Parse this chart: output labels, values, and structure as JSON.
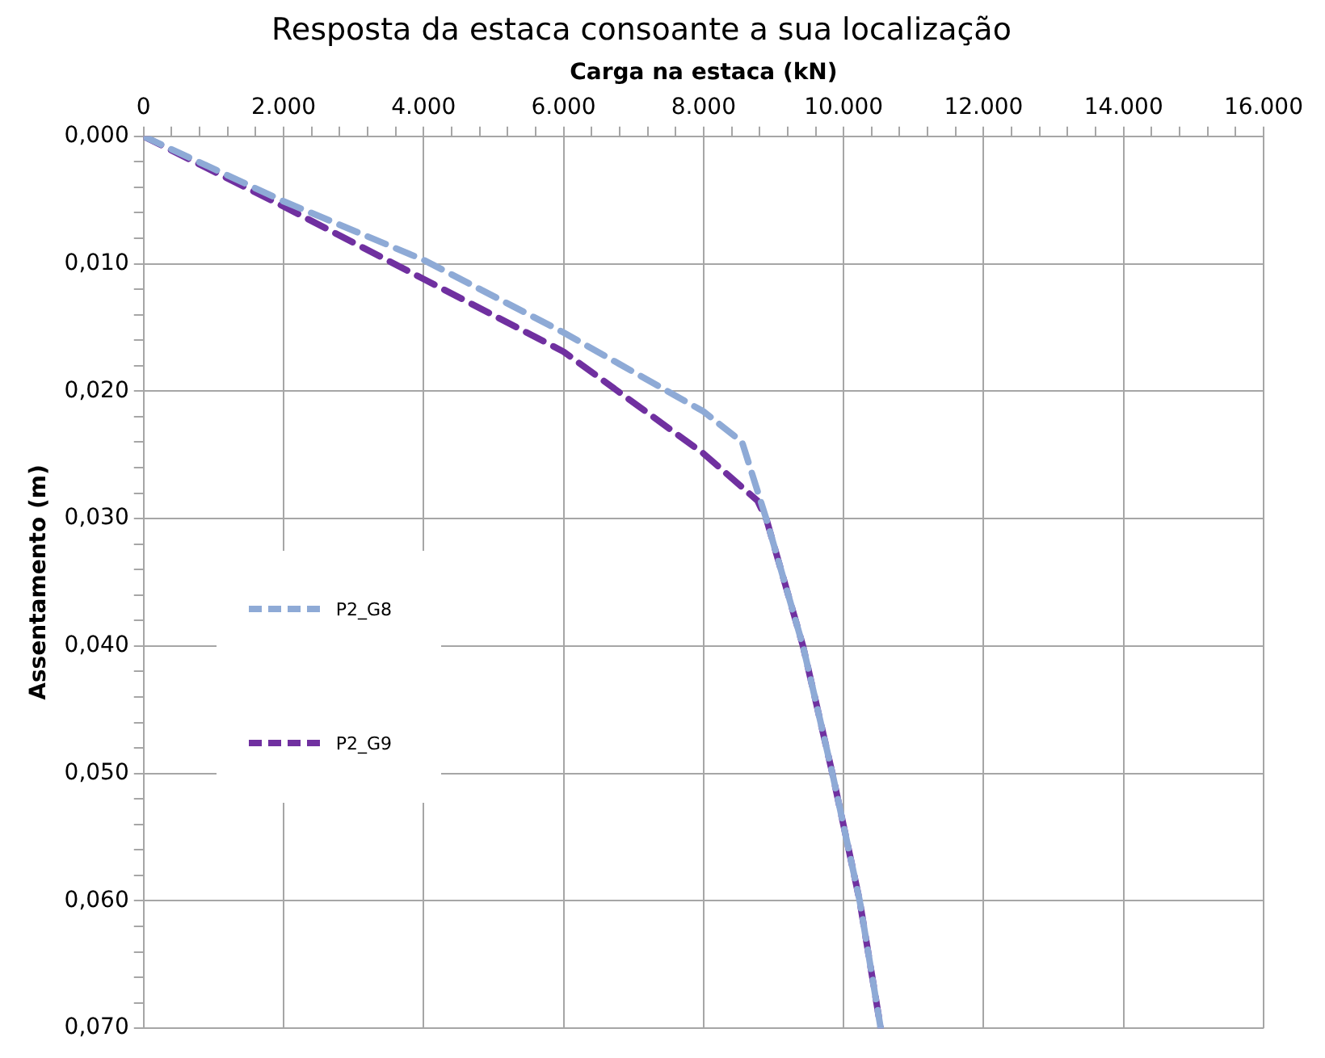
{
  "chart_data": {
    "type": "line",
    "title": "Resposta da estaca consoante a sua localização",
    "xlabel": "Carga na estaca (kN)",
    "ylabel": "Assentamento (m)",
    "series": [
      {
        "name": "P2_G8",
        "color": "#8eaad6",
        "x": [
          0,
          2000,
          4000,
          6000,
          8000,
          8550,
          8900,
          9420,
          9840,
          10230,
          10530
        ],
        "values": [
          0,
          0.0051,
          0.0097,
          0.0154,
          0.0216,
          0.024,
          0.0301,
          0.04,
          0.05,
          0.06,
          0.07
        ]
      },
      {
        "name": "P2_G9",
        "color": "#7030a0",
        "x": [
          0,
          2000,
          4000,
          6000,
          8000,
          8770,
          8900,
          9420,
          9840,
          10230,
          10530
        ],
        "values": [
          0,
          0.0055,
          0.0112,
          0.0169,
          0.0249,
          0.0286,
          0.0301,
          0.04,
          0.05,
          0.06,
          0.07
        ]
      }
    ],
    "xlim": [
      0,
      16000
    ],
    "xticks": [
      0,
      {
        "value": 400,
        "label": null
      },
      {
        "value": 800,
        "label": null
      },
      {
        "value": 1200,
        "label": null
      },
      {
        "value": 1600,
        "label": null
      },
      {
        "value": 2000,
        "label": "2.000"
      },
      {
        "value": 2400,
        "label": null
      },
      {
        "value": 2800,
        "label": null
      },
      {
        "value": 3200,
        "label": null
      },
      {
        "value": 3600,
        "label": null
      },
      {
        "value": 4000,
        "label": "4.000"
      },
      {
        "value": 4400,
        "label": null
      },
      {
        "value": 4800,
        "label": null
      },
      {
        "value": 5200,
        "label": null
      },
      {
        "value": 5600,
        "label": null
      },
      {
        "value": 6000,
        "label": "6.000"
      },
      {
        "value": 6400,
        "label": null
      },
      {
        "value": 6800,
        "label": null
      },
      {
        "value": 7200,
        "label": null
      },
      {
        "value": 7600,
        "label": null
      },
      {
        "value": 8000,
        "label": "8.000"
      },
      {
        "value": 8400,
        "label": null
      },
      {
        "value": 8800,
        "label": null
      },
      {
        "value": 9200,
        "label": null
      },
      {
        "value": 9600,
        "label": null
      },
      {
        "value": 10000,
        "label": "10.000"
      },
      {
        "value": 10400,
        "label": null
      },
      {
        "value": 10800,
        "label": null
      },
      {
        "value": 11200,
        "label": null
      },
      {
        "value": 11600,
        "label": null
      },
      {
        "value": 12000,
        "label": "12.000"
      },
      {
        "value": 12400,
        "label": null
      },
      {
        "value": 12800,
        "label": null
      },
      {
        "value": 13200,
        "label": null
      },
      {
        "value": 13600,
        "label": null
      },
      {
        "value": 14000,
        "label": "14.000"
      },
      {
        "value": 14400,
        "label": null
      },
      {
        "value": 14800,
        "label": null
      },
      {
        "value": 15200,
        "label": null
      },
      {
        "value": 15600,
        "label": null
      },
      {
        "value": 16000,
        "label": "16.000"
      }
    ],
    "ylim": [
      0.07,
      0
    ],
    "yticks": [
      {
        "value": 0,
        "label": "0,000"
      },
      {
        "value": 0.002,
        "label": null
      },
      {
        "value": 0.004,
        "label": null
      },
      {
        "value": 0.006,
        "label": null
      },
      {
        "value": 0.008,
        "label": null
      },
      {
        "value": 0.01,
        "label": "0,010"
      },
      {
        "value": 0.012,
        "label": null
      },
      {
        "value": 0.014,
        "label": null
      },
      {
        "value": 0.016,
        "label": null
      },
      {
        "value": 0.018,
        "label": null
      },
      {
        "value": 0.02,
        "label": "0,020"
      },
      {
        "value": 0.022,
        "label": null
      },
      {
        "value": 0.024,
        "label": null
      },
      {
        "value": 0.026,
        "label": null
      },
      {
        "value": 0.028,
        "label": null
      },
      {
        "value": 0.03,
        "label": "0,030"
      },
      {
        "value": 0.032,
        "label": null
      },
      {
        "value": 0.034,
        "label": null
      },
      {
        "value": 0.036,
        "label": null
      },
      {
        "value": 0.038,
        "label": null
      },
      {
        "value": 0.04,
        "label": "0,040"
      },
      {
        "value": 0.042,
        "label": null
      },
      {
        "value": 0.044,
        "label": null
      },
      {
        "value": 0.046,
        "label": null
      },
      {
        "value": 0.048,
        "label": null
      },
      {
        "value": 0.05,
        "label": "0,050"
      },
      {
        "value": 0.052,
        "label": null
      },
      {
        "value": 0.054,
        "label": null
      },
      {
        "value": 0.056,
        "label": null
      },
      {
        "value": 0.058,
        "label": null
      },
      {
        "value": 0.06,
        "label": "0,060"
      },
      {
        "value": 0.062,
        "label": null
      },
      {
        "value": 0.064,
        "label": null
      },
      {
        "value": 0.066,
        "label": null
      },
      {
        "value": 0.068,
        "label": null
      },
      {
        "value": 0.07,
        "label": "0,070"
      }
    ],
    "grid": true,
    "legend": "left",
    "marker": "none",
    "line_style": "dashed"
  }
}
